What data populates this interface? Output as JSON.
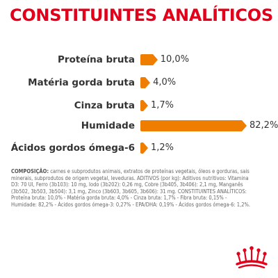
{
  "title": "CONSTITUINTES ANALÍTICOS",
  "rows": [
    {
      "label": "Proteína bruta",
      "value": "10,0%",
      "amount": 10.0
    },
    {
      "label": "Matéria gorda bruta",
      "value": "4,0%",
      "amount": 4.0
    },
    {
      "label": "Cinza bruta",
      "value": "1,7%",
      "amount": 1.7
    },
    {
      "label": "Humidade",
      "value": "82,2%",
      "amount": 82.2
    },
    {
      "label": "Ácidos gordos ómega-6",
      "value": "1,2%",
      "amount": 1.2
    }
  ],
  "composition": {
    "lead": "COMPOSIÇÃO:",
    "text": " carnes e subprodutos animais, extratos de proteínas vegetais, óleos e gorduras, sais minerais, subprodutos de origem vegetal, leveduras. ADITIVOS (por kg): Aditivos nutritivos: Vitamina D3: 70 UI, Ferro (3b103): 10 mg, Iodo (3b202): 0,26 mg, Cobre (3b405, 3b406): 2,1 mg, Manganês (3b502, 3b503, 3b504): 3,1 mg, Zinco (3b603, 3b605, 3b606): 31 mg. CONSTITUINTES ANALÍTICOS: Proteína bruta: 10,0% - Matéria gorda bruta: 4,0% - Cinza bruta: 1,7% - Fibra bruta: 0,15% - Humidade: 82,2% - Ácidos gordos ómega-3: 0,27% - EPA/DHA: 0,19% - Ácidos gordos ómega-6: 1,2%."
  },
  "colors": {
    "title": "#e2001a",
    "bar": "#ee7d00",
    "text": "#333333",
    "logo": "#e2001a"
  },
  "logo_icon": "royal-canin-crown-icon"
}
